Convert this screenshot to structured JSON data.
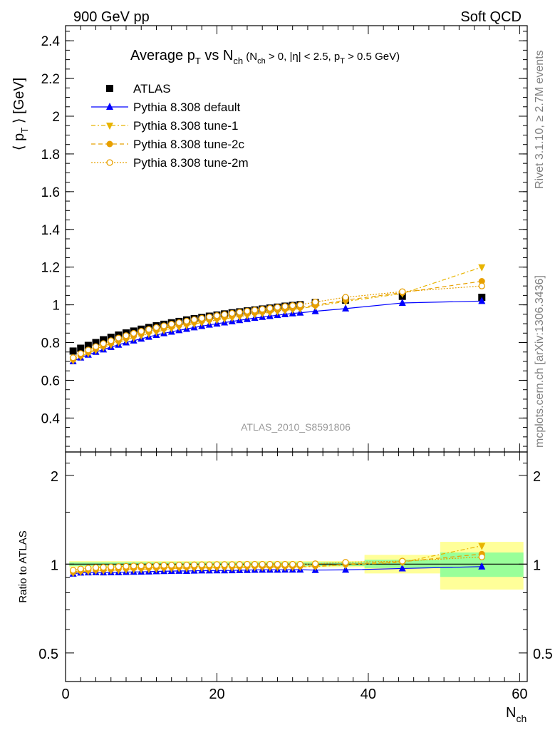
{
  "header": {
    "left": "900 GeV pp",
    "right": "Soft QCD"
  },
  "side_labels": {
    "rivet": "Rivet 3.1.10, ≥ 2.7M events",
    "mcplots": "mcplots.cern.ch [arXiv:1306.3436]"
  },
  "chart_data": [
    {
      "type": "scatter",
      "title_main": "Average p",
      "title_sub_T": "T",
      "title_vs": " vs N",
      "title_sub_ch": "ch",
      "title_cond_1": " (N",
      "title_cond_ch": "ch",
      "title_cond_2": " > 0, |η| < 2.5, p",
      "title_cond_T": "T",
      "title_cond_3": " > 0.5 GeV)",
      "watermark": "ATLAS_2010_S8591806",
      "ylabel_main": "⟨ p",
      "ylabel_sub": "T",
      "ylabel_rest": " ⟩ [GeV]",
      "xlim": [
        0,
        61
      ],
      "ylim": [
        0.22,
        2.48
      ],
      "y_ticks": [
        "0.4",
        "0.6",
        "0.8",
        "1",
        "1.2",
        "1.4",
        "1.6",
        "1.8",
        "2",
        "2.2",
        "2.4"
      ],
      "legend_position": "top-left",
      "x": [
        1,
        2,
        3,
        4,
        5,
        6,
        7,
        8,
        9,
        10,
        11,
        12,
        13,
        14,
        15,
        16,
        17,
        18,
        19,
        20,
        21,
        22,
        23,
        24,
        25,
        26,
        27,
        28,
        29,
        30,
        31,
        33,
        37,
        44.5,
        55
      ],
      "series": [
        {
          "name": "ATLAS",
          "color": "#000000",
          "marker": "square",
          "values": [
            0.755,
            0.77,
            0.785,
            0.8,
            0.815,
            0.828,
            0.84,
            0.851,
            0.861,
            0.871,
            0.88,
            0.889,
            0.897,
            0.905,
            0.912,
            0.92,
            0.927,
            0.933,
            0.94,
            0.946,
            0.952,
            0.958,
            0.963,
            0.968,
            0.973,
            0.978,
            0.983,
            0.988,
            0.993,
            0.997,
            1.001,
            1.012,
            1.025,
            1.045,
            1.04
          ]
        },
        {
          "name": "Pythia 8.308 default",
          "color": "#0000ff",
          "marker": "triangle-up",
          "values": [
            0.7,
            0.72,
            0.735,
            0.75,
            0.763,
            0.776,
            0.788,
            0.8,
            0.81,
            0.82,
            0.83,
            0.84,
            0.849,
            0.857,
            0.865,
            0.872,
            0.88,
            0.887,
            0.894,
            0.9,
            0.906,
            0.912,
            0.918,
            0.924,
            0.93,
            0.935,
            0.94,
            0.945,
            0.95,
            0.954,
            0.958,
            0.966,
            0.98,
            1.01,
            1.02
          ]
        },
        {
          "name": "Pythia 8.308 tune-1",
          "color": "#e8b400",
          "marker": "triangle-down",
          "values": [
            0.705,
            0.726,
            0.743,
            0.76,
            0.775,
            0.789,
            0.802,
            0.815,
            0.826,
            0.837,
            0.847,
            0.857,
            0.866,
            0.875,
            0.883,
            0.891,
            0.899,
            0.906,
            0.913,
            0.92,
            0.926,
            0.932,
            0.938,
            0.944,
            0.95,
            0.955,
            0.96,
            0.965,
            0.97,
            0.975,
            0.98,
            0.993,
            1.018,
            1.06,
            1.2
          ]
        },
        {
          "name": "Pythia 8.308 tune-2c",
          "color": "#e8a000",
          "marker": "circle",
          "values": [
            0.71,
            0.731,
            0.749,
            0.766,
            0.781,
            0.796,
            0.81,
            0.823,
            0.835,
            0.846,
            0.856,
            0.866,
            0.875,
            0.884,
            0.892,
            0.9,
            0.908,
            0.915,
            0.922,
            0.929,
            0.935,
            0.941,
            0.947,
            0.953,
            0.958,
            0.963,
            0.968,
            0.973,
            0.978,
            0.982,
            0.986,
            0.998,
            1.025,
            1.065,
            1.125
          ]
        },
        {
          "name": "Pythia 8.308 tune-2m",
          "color": "#e8a000",
          "marker": "open-circle",
          "values": [
            0.72,
            0.742,
            0.761,
            0.779,
            0.795,
            0.81,
            0.824,
            0.837,
            0.849,
            0.86,
            0.87,
            0.88,
            0.889,
            0.898,
            0.906,
            0.914,
            0.922,
            0.929,
            0.936,
            0.943,
            0.949,
            0.955,
            0.961,
            0.967,
            0.972,
            0.977,
            0.982,
            0.987,
            0.992,
            0.996,
            1.0,
            1.015,
            1.04,
            1.07,
            1.1
          ]
        }
      ]
    },
    {
      "type": "scatter",
      "ylabel": "Ratio to ATLAS",
      "xlabel_main": "N",
      "xlabel_sub": "ch",
      "xlim": [
        0,
        61
      ],
      "ylim": [
        0.4,
        2.4
      ],
      "y_scale": "log",
      "y_ticks_left": [
        "0.5",
        "1",
        "2"
      ],
      "y_ticks_right": [
        "0.5",
        "1",
        "2"
      ],
      "x_ticks": [
        "0",
        "20",
        "40",
        "60"
      ],
      "reference": 1.0,
      "bands": [
        {
          "x0": 0.5,
          "x1": 39.5,
          "stat": [
            0.985,
            1.015
          ],
          "total": [
            0.975,
            1.025
          ]
        },
        {
          "x0": 39.5,
          "x1": 49.5,
          "stat": [
            0.97,
            1.035
          ],
          "total": [
            0.93,
            1.075
          ]
        },
        {
          "x0": 49.5,
          "x1": 60.5,
          "stat": [
            0.905,
            1.095
          ],
          "total": [
            0.82,
            1.19
          ]
        }
      ],
      "band_colors": {
        "stat": "#99ff99",
        "total": "#ffff99"
      }
    }
  ]
}
